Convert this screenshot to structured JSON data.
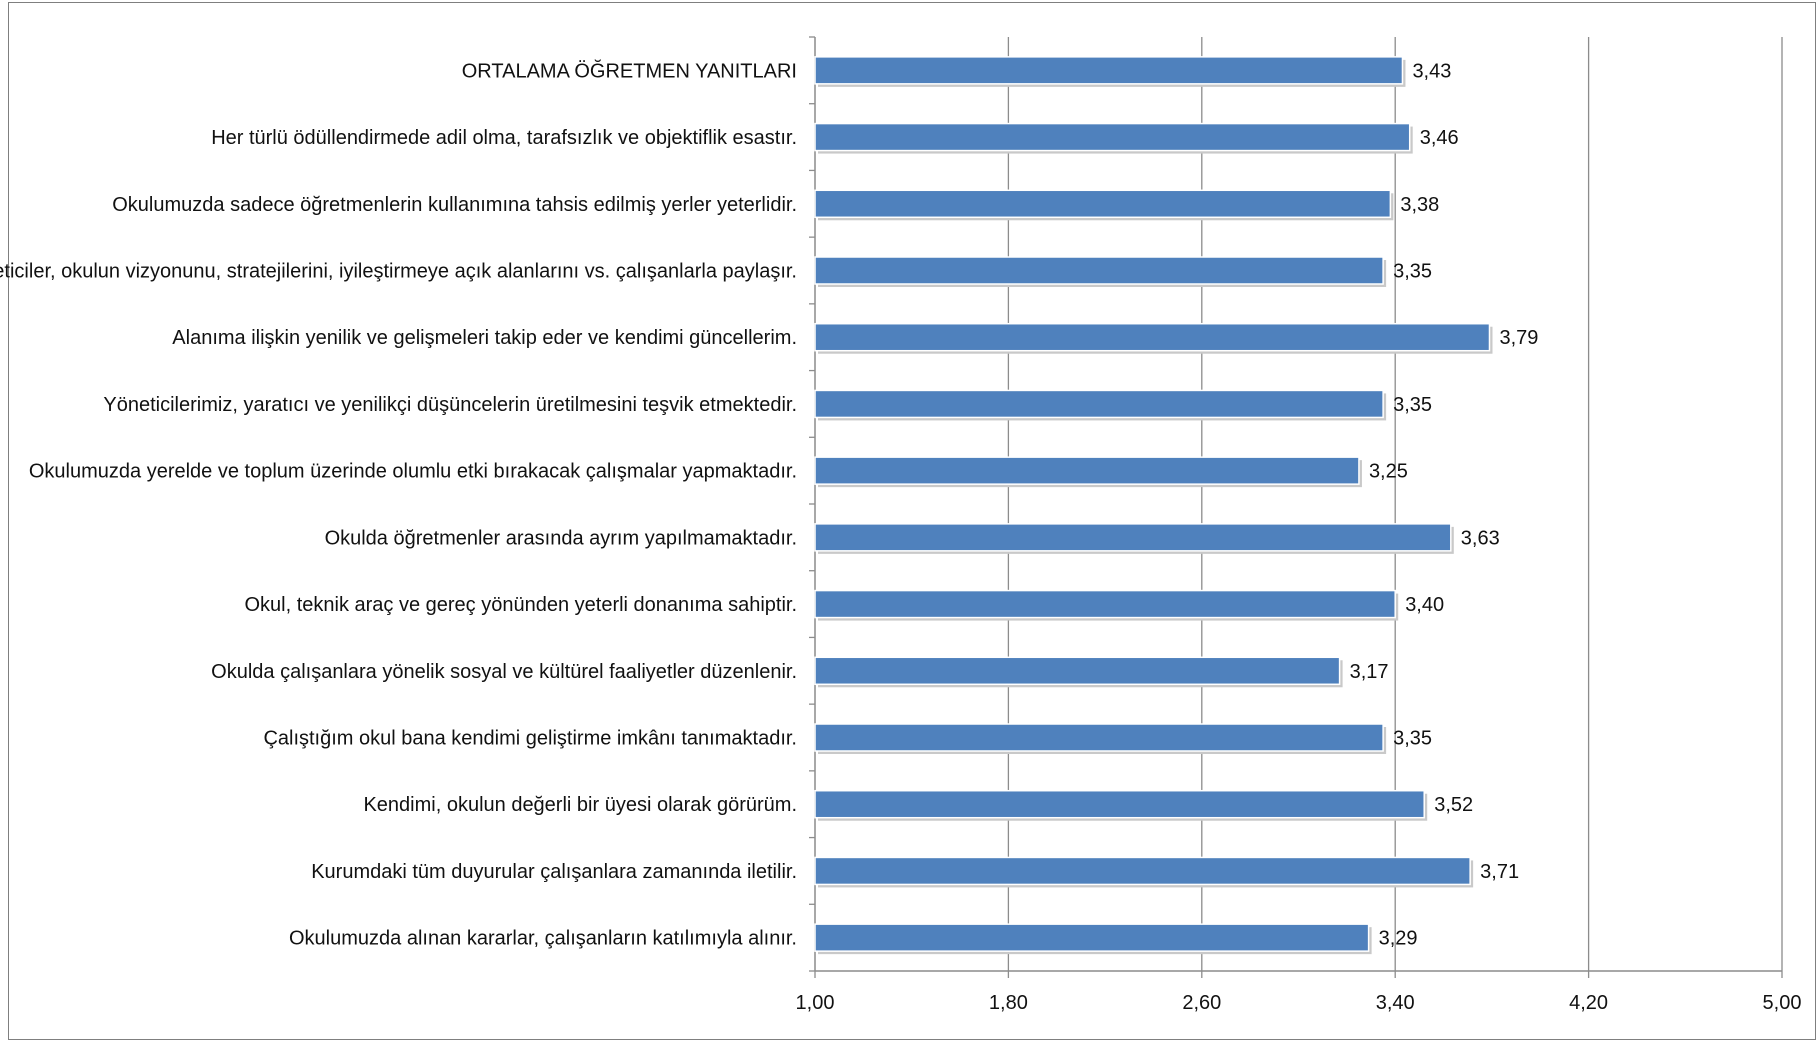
{
  "chart_data": {
    "type": "bar",
    "orientation": "horizontal",
    "categories": [
      "ORTALAMA ÖĞRETMEN YANITLARI",
      "Her türlü ödüllendirmede adil olma, tarafsızlık ve objektiflik esastır.",
      "Okulumuzda sadece öğretmenlerin kullanımına tahsis edilmiş yerler yeterlidir.",
      "Yöneticiler, okulun vizyonunu, stratejilerini, iyileştirmeye açık alanlarını vs. çalışanlarla paylaşır.",
      "Alanıma ilişkin yenilik ve gelişmeleri takip eder ve kendimi güncellerim.",
      "Yöneticilerimiz, yaratıcı ve yenilikçi düşüncelerin üretilmesini teşvik etmektedir.",
      "Okulumuzda yerelde ve toplum üzerinde olumlu etki bırakacak çalışmalar yapmaktadır.",
      "Okulda öğretmenler arasında ayrım yapılmamaktadır.",
      "Okul, teknik araç ve gereç yönünden yeterli donanıma sahiptir.",
      "Okulda çalışanlara yönelik sosyal ve kültürel faaliyetler düzenlenir.",
      "Çalıştığım okul bana kendimi geliştirme imkânı tanımaktadır.",
      "Kendimi, okulun değerli bir üyesi olarak görürüm.",
      "Kurumdaki tüm duyurular çalışanlara zamanında iletilir.",
      "Okulumuzda alınan kararlar, çalışanların katılımıyla alınır."
    ],
    "values": [
      3.43,
      3.46,
      3.38,
      3.35,
      3.79,
      3.35,
      3.25,
      3.63,
      3.4,
      3.17,
      3.35,
      3.52,
      3.71,
      3.29
    ],
    "value_labels": [
      "3,43",
      "3,46",
      "3,38",
      "3,35",
      "3,79",
      "3,35",
      "3,25",
      "3,63",
      "3,40",
      "3,17",
      "3,35",
      "3,52",
      "3,71",
      "3,29"
    ],
    "xlim": [
      1.0,
      5.0
    ],
    "x_ticks": [
      1.0,
      1.8,
      2.6,
      3.4,
      4.2,
      5.0
    ],
    "x_tick_labels": [
      "1,00",
      "1,80",
      "2,60",
      "3,40",
      "4,20",
      "5,00"
    ],
    "grid": "vertical",
    "legend": "none",
    "bar_color": "#4f81bd",
    "grid_color": "#8c8c8c"
  }
}
